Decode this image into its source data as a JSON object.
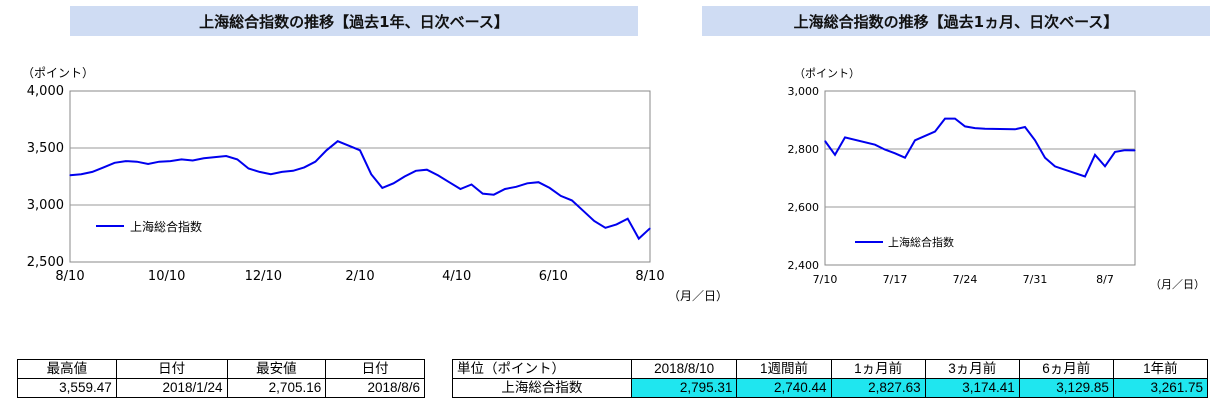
{
  "chart1": {
    "title": "上海総合指数の推移【過去1年、日次ベース】",
    "ylabel": "（ポイント）",
    "xlabel": "（月／日）"
  },
  "chart2": {
    "title": "上海総合指数の推移【過去1ヵ月、日次ベース】",
    "ylabel": "（ポイント）",
    "xlabel": "（月／日）"
  },
  "chart_data": [
    {
      "type": "line",
      "title": "上海総合指数の推移【過去1年、日次ベース】",
      "ylabel": "（ポイント）",
      "xlabel": "（月／日）",
      "ylim": [
        2500,
        4000
      ],
      "yticks": [
        "2,500",
        "3,000",
        "3,500",
        "4,000"
      ],
      "ytick_values": [
        2500,
        3000,
        3500,
        4000
      ],
      "xticks": [
        "8/10",
        "10/10",
        "12/10",
        "2/10",
        "4/10",
        "6/10",
        "8/10"
      ],
      "x_range_weeks": [
        0,
        52
      ],
      "grid": true,
      "legend": "left-lower",
      "series": [
        {
          "name": "上海総合指数",
          "color": "#0000ee",
          "x_weeks": [
            0,
            1,
            2,
            3,
            4,
            5,
            6,
            7,
            8,
            9,
            10,
            11,
            12,
            13,
            14,
            15,
            16,
            17,
            18,
            19,
            20,
            21,
            22,
            23,
            24,
            25,
            26,
            27,
            28,
            29,
            30,
            31,
            32,
            33,
            34,
            35,
            36,
            37,
            38,
            39,
            40,
            41,
            42,
            43,
            44,
            45,
            46,
            47,
            48,
            49,
            50,
            51,
            52
          ],
          "values": [
            3261.75,
            3270,
            3290,
            3330,
            3370,
            3385,
            3380,
            3360,
            3380,
            3385,
            3400,
            3390,
            3410,
            3420,
            3430,
            3400,
            3320,
            3290,
            3270,
            3290,
            3300,
            3330,
            3380,
            3480,
            3559.47,
            3520,
            3480,
            3270,
            3150,
            3190,
            3250,
            3300,
            3310,
            3260,
            3200,
            3140,
            3180,
            3100,
            3090,
            3140,
            3160,
            3190,
            3200,
            3150,
            3080,
            3040,
            2950,
            2860,
            2800,
            2830,
            2880,
            2705.16,
            2795.31
          ]
        }
      ]
    },
    {
      "type": "line",
      "title": "上海総合指数の推移【過去1ヵ月、日次ベース】",
      "ylabel": "（ポイント）",
      "xlabel": "（月／日）",
      "ylim": [
        2400,
        3000
      ],
      "yticks": [
        "2,400",
        "2,600",
        "2,800",
        "3,000"
      ],
      "ytick_values": [
        2400,
        2600,
        2800,
        3000
      ],
      "x_range_days": [
        0,
        31
      ],
      "xticks": [
        "7/10",
        "7/17",
        "7/24",
        "7/31",
        "8/7"
      ],
      "xtick_days": [
        0,
        7,
        14,
        21,
        28
      ],
      "grid": true,
      "legend": "left-lower",
      "series": [
        {
          "name": "上海総合指数",
          "color": "#0000ee",
          "x_days": [
            0,
            1,
            2,
            5,
            6,
            7,
            8,
            9,
            11,
            12,
            13,
            14,
            15,
            16,
            19,
            20,
            21,
            22,
            23,
            26,
            27,
            28,
            29,
            30,
            31
          ],
          "values": [
            2827.63,
            2780,
            2840,
            2815,
            2798,
            2785,
            2770,
            2830,
            2860,
            2905,
            2905,
            2878,
            2872,
            2870,
            2868,
            2876,
            2830,
            2770,
            2740,
            2705.16,
            2780,
            2740.44,
            2790,
            2796,
            2795.31
          ]
        }
      ]
    }
  ],
  "table_left": {
    "headers": [
      "最高値",
      "日付",
      "最安値",
      "日付"
    ],
    "values": [
      "3,559.47",
      "2018/1/24",
      "2,705.16",
      "2018/8/6"
    ]
  },
  "table_right": {
    "headers": [
      "単位（ポイント）",
      "2018/8/10",
      "1週間前",
      "1ヵ月前",
      "3ヵ月前",
      "6ヵ月前",
      "1年前"
    ],
    "row_label": "上海総合指数",
    "values": [
      "2,795.31",
      "2,740.44",
      "2,827.63",
      "3,174.41",
      "3,129.85",
      "3,261.75"
    ]
  }
}
